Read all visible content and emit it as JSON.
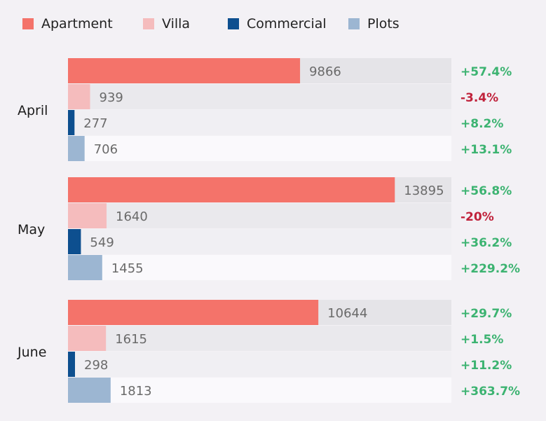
{
  "chart_data": {
    "type": "bar",
    "orientation": "horizontal",
    "categories": [
      "April",
      "May",
      "June"
    ],
    "series": [
      {
        "name": "Apartment",
        "color": "#f4736a",
        "track": "#e5e4e8",
        "values": [
          9866,
          13895,
          10644
        ],
        "changes": [
          "+57.4%",
          "+56.8%",
          "+29.7%"
        ]
      },
      {
        "name": "Villa",
        "color": "#f5bcbd",
        "track": "#eae9ed",
        "values": [
          939,
          1640,
          1615
        ],
        "changes": [
          "-3.4%",
          "-20%",
          "+1.5%"
        ]
      },
      {
        "name": "Commercial",
        "color": "#0d4f8f",
        "track": "#f0eff3",
        "values": [
          277,
          549,
          298
        ],
        "changes": [
          "+8.2%",
          "+36.2%",
          "+11.2%"
        ]
      },
      {
        "name": "Plots",
        "color": "#9cb6d2",
        "track": "#faf9fc",
        "values": [
          706,
          1455,
          1813
        ],
        "changes": [
          "+13.1%",
          "+229.2%",
          "+363.7%"
        ]
      }
    ],
    "xlim": [
      0,
      16300
    ],
    "positive_color": "#3cb371",
    "negative_color": "#c0223b",
    "grid": false,
    "legend_position": "top-left"
  }
}
